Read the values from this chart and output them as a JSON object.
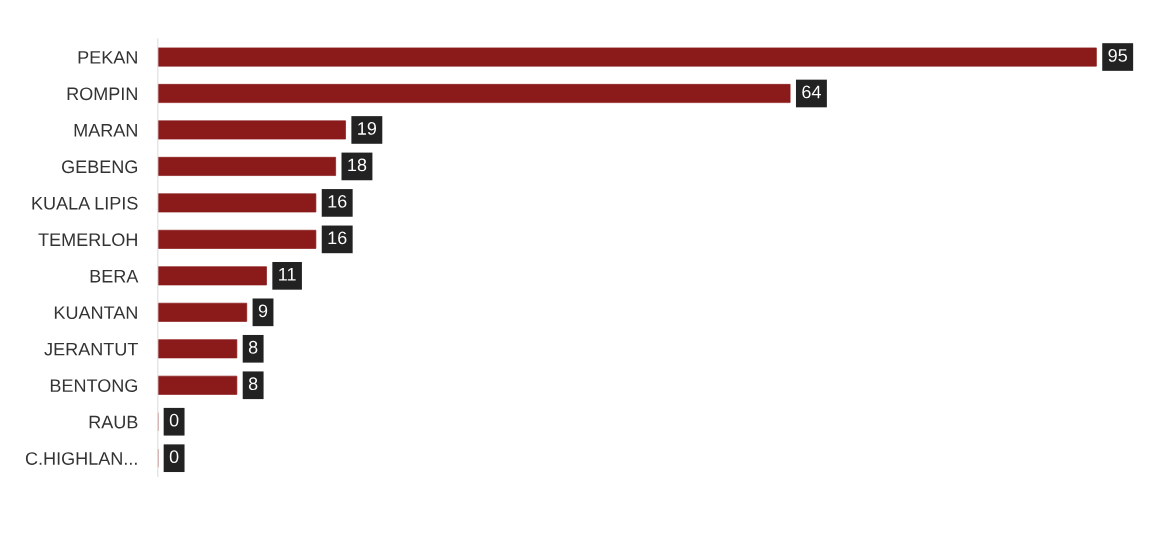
{
  "chart_data": {
    "type": "bar",
    "orientation": "horizontal",
    "categories": [
      "PEKAN",
      "ROMPIN",
      "MARAN",
      "GEBENG",
      "KUALA LIPIS",
      "TEMERLOH",
      "BERA",
      "KUANTAN",
      "JERANTUT",
      "BENTONG",
      "RAUB",
      "C.HIGHLAN..."
    ],
    "values": [
      95,
      64,
      19,
      18,
      16,
      16,
      11,
      9,
      8,
      8,
      0,
      0
    ],
    "color": "#8b1a1a",
    "data_labels": true,
    "grid": false,
    "legend": false,
    "tick_labels": "y"
  }
}
